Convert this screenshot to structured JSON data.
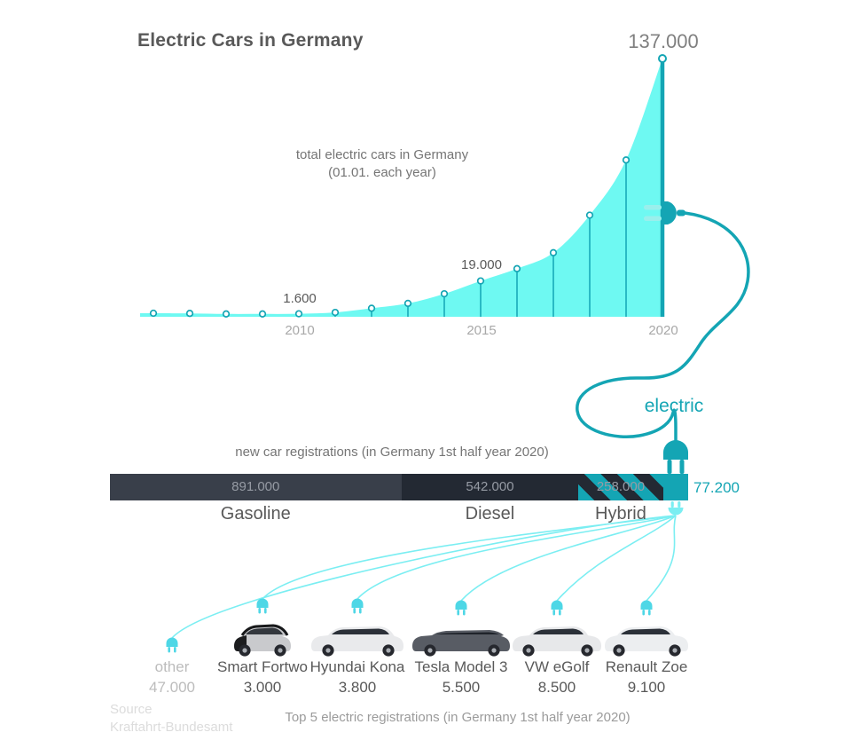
{
  "title": "Electric Cars in Germany",
  "electric_label": "electric",
  "chart_data": {
    "type": "area",
    "title": "total electric cars in Germany",
    "subtitle": "(01.01. each year)",
    "x": [
      2006,
      2007,
      2008,
      2009,
      2010,
      2011,
      2012,
      2013,
      2014,
      2015,
      2016,
      2017,
      2018,
      2019,
      2020
    ],
    "values": [
      1900,
      1800,
      1500,
      1500,
      1600,
      2300,
      4500,
      7100,
      12200,
      19000,
      25500,
      34000,
      53900,
      83200,
      137000
    ],
    "ylim": [
      0,
      137000
    ],
    "x_ticks": [
      "2010",
      "2015",
      "2020"
    ],
    "annotations": [
      {
        "x": 2010,
        "text": "1.600"
      },
      {
        "x": 2015,
        "text": "19.000"
      },
      {
        "x": 2020,
        "text": "137.000"
      }
    ],
    "colors": {
      "fill": "#6ef9f2",
      "accent": "#14a5b4",
      "light_cable": "#7beef2",
      "prong": "#9aefec",
      "plug_small": "#4ed7e6"
    }
  },
  "bar_chart": {
    "caption": "new car registrations (in Germany 1st half year 2020)",
    "type": "stacked-bar",
    "segments": [
      {
        "name": "Gasoline",
        "value": 891000,
        "value_label": "891.000",
        "color": "#393f4a",
        "pattern": "solid"
      },
      {
        "name": "Diesel",
        "value": 542000,
        "value_label": "542.000",
        "color": "#232933",
        "pattern": "solid"
      },
      {
        "name": "Hybrid",
        "value": 258000,
        "value_label": "258.000",
        "color": "#232933",
        "pattern": "striped",
        "stripe_color": "#14a5b4"
      },
      {
        "name": "electric",
        "value": 77200,
        "value_label": "77.200",
        "color": "#14a5b4",
        "pattern": "solid"
      }
    ]
  },
  "registrations": {
    "caption": "Top 5 electric registrations (in Germany 1st half year 2020)",
    "items": [
      {
        "name": "other",
        "value_label": "47.000",
        "has_image": false
      },
      {
        "name": "Smart Fortwo",
        "value_label": "3.000",
        "has_image": true,
        "image": {
          "style": "smart",
          "body": "#c9cacd",
          "glass": "#33373d"
        }
      },
      {
        "name": "Hyundai Kona",
        "value_label": "3.800",
        "has_image": true,
        "image": {
          "style": "suv",
          "body": "#e9eaec",
          "glass": "#2b3038"
        }
      },
      {
        "name": "Tesla Model 3",
        "value_label": "5.500",
        "has_image": true,
        "image": {
          "style": "sedan",
          "body": "#585c64",
          "glass": "#1f232a"
        }
      },
      {
        "name": "VW eGolf",
        "value_label": "8.500",
        "has_image": true,
        "image": {
          "style": "hatch",
          "body": "#e7e8ea",
          "glass": "#2b3038"
        }
      },
      {
        "name": "Renault Zoe",
        "value_label": "9.100",
        "has_image": true,
        "image": {
          "style": "zoe",
          "body": "#eceef0",
          "glass": "#2b3038"
        }
      }
    ]
  },
  "source": {
    "label": "Source",
    "name": "Kraftahrt-Bundesamt"
  }
}
